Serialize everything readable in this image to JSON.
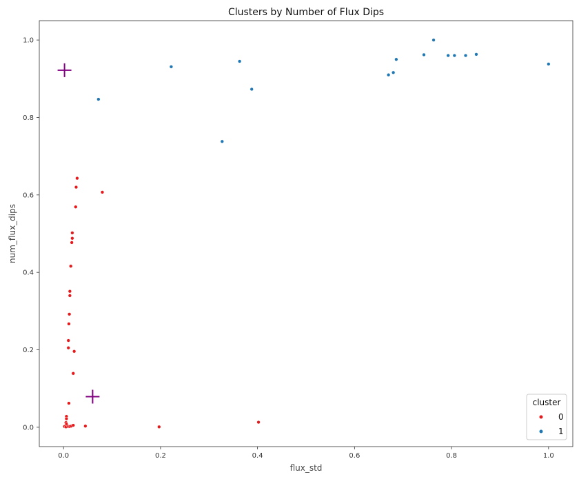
{
  "chart_data": {
    "type": "scatter",
    "title": "Clusters by Number of Flux Dips",
    "xlabel": "flux_std",
    "ylabel": "num_flux_dips",
    "xlim": [
      -0.05,
      1.05
    ],
    "ylim": [
      -0.05,
      1.05
    ],
    "xticks": [
      "0.0",
      "0.2",
      "0.4",
      "0.6",
      "0.8",
      "1.0"
    ],
    "yticks": [
      "0.0",
      "0.2",
      "0.4",
      "0.6",
      "0.8",
      "1.0"
    ],
    "grid": false,
    "legend": {
      "title": "cluster",
      "placement": "bottom-right",
      "entries": [
        {
          "label": "0",
          "color": "#e41a1c"
        },
        {
          "label": "1",
          "color": "#1f77b4"
        }
      ]
    },
    "series": [
      {
        "name": "0",
        "color": "#e41a1c",
        "points": [
          [
            0.028,
            0.643
          ],
          [
            0.026,
            0.62
          ],
          [
            0.08,
            0.607
          ],
          [
            0.025,
            0.569
          ],
          [
            0.018,
            0.502
          ],
          [
            0.018,
            0.488
          ],
          [
            0.017,
            0.477
          ],
          [
            0.015,
            0.416
          ],
          [
            0.013,
            0.351
          ],
          [
            0.013,
            0.34
          ],
          [
            0.012,
            0.292
          ],
          [
            0.011,
            0.267
          ],
          [
            0.01,
            0.224
          ],
          [
            0.01,
            0.205
          ],
          [
            0.022,
            0.196
          ],
          [
            0.02,
            0.139
          ],
          [
            0.011,
            0.062
          ],
          [
            0.006,
            0.028
          ],
          [
            0.006,
            0.022
          ],
          [
            0.005,
            0.012
          ],
          [
            0.006,
            0.008
          ],
          [
            0.002,
            0.002
          ],
          [
            0.005,
            0.001
          ],
          [
            0.01,
            0.002
          ],
          [
            0.013,
            0.002
          ],
          [
            0.016,
            0.003
          ],
          [
            0.02,
            0.005
          ],
          [
            0.045,
            0.003
          ],
          [
            0.197,
            0.001
          ],
          [
            0.402,
            0.013
          ]
        ]
      },
      {
        "name": "1",
        "color": "#1f77b4",
        "points": [
          [
            0.072,
            0.847
          ],
          [
            0.222,
            0.931
          ],
          [
            0.327,
            0.738
          ],
          [
            0.363,
            0.945
          ],
          [
            0.388,
            0.873
          ],
          [
            0.67,
            0.91
          ],
          [
            0.68,
            0.916
          ],
          [
            0.686,
            0.95
          ],
          [
            0.743,
            0.962
          ],
          [
            0.763,
            1.0
          ],
          [
            0.793,
            0.96
          ],
          [
            0.806,
            0.96
          ],
          [
            0.829,
            0.96
          ],
          [
            0.851,
            0.963
          ],
          [
            1.0,
            0.938
          ]
        ]
      }
    ],
    "centroids": {
      "color": "#800080",
      "marker": "+",
      "points": [
        [
          0.002,
          0.922
        ],
        [
          0.06,
          0.079
        ]
      ]
    }
  }
}
